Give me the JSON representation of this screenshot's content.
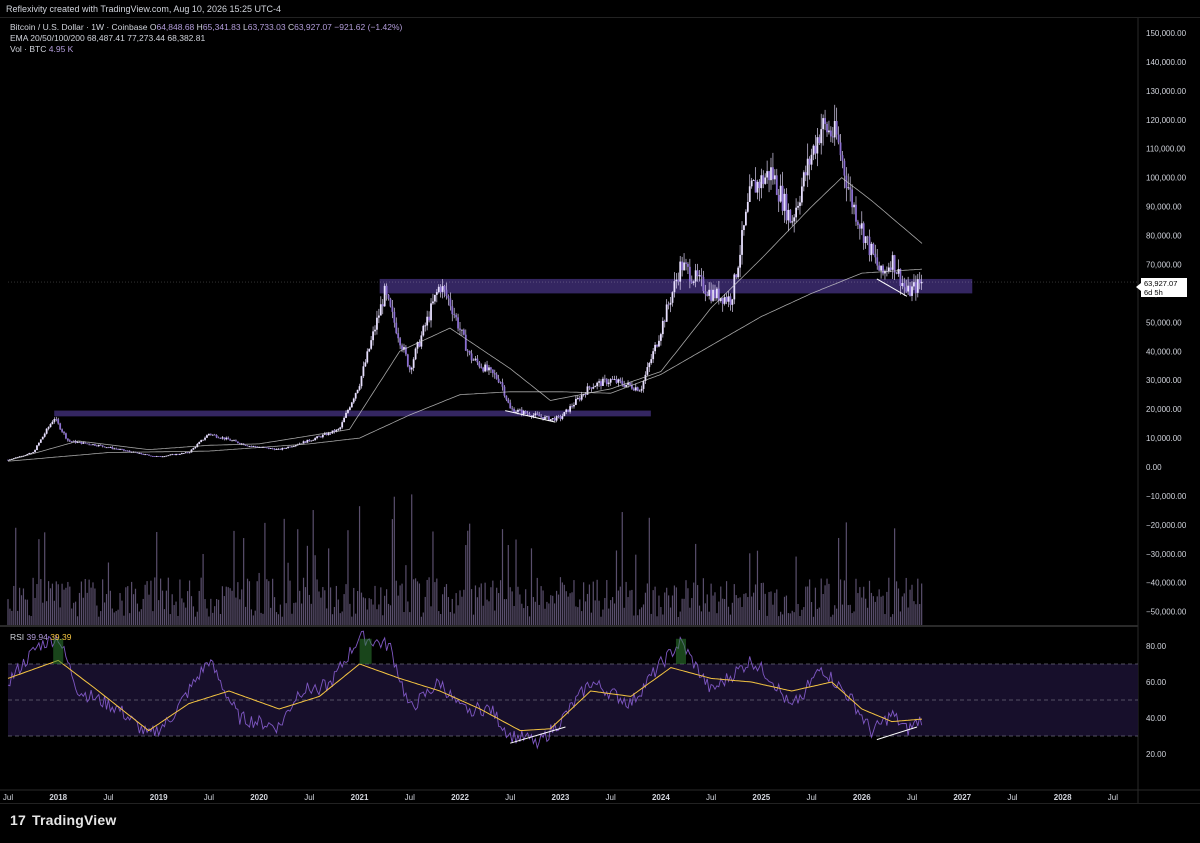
{
  "header": {
    "text": "Reflexivity created with TradingView.com, Aug 10, 2026 15:25 UTC-4"
  },
  "legend": {
    "symbol": "Bitcoin / U.S. Dollar · 1W · Coinbase",
    "open_label": "O",
    "open": "64,848.68",
    "high_label": "H",
    "high": "65,341.83",
    "low_label": "L",
    "low": "63,733.03",
    "close_label": "C",
    "close": "63,927.07",
    "change": "−921.62 (−1.42%)",
    "ema_label": "EMA 20/50/100/200",
    "ema_values": "68,487.41  77,273.44  68,382.81",
    "vol_label": "Vol · BTC",
    "vol_value": "4.95 K",
    "rsi_label": "RSI",
    "rsi_value": "39.94",
    "rsi_ma_value": "39.39"
  },
  "price_tag": {
    "price": "63,927.07",
    "countdown": "6d 5h"
  },
  "branding": {
    "name": "TradingView",
    "mark": "17"
  },
  "colors": {
    "background": "#000000",
    "candle": "#b39ddb",
    "volume": "#6a5d80",
    "zone": "#3a2a6b",
    "rsi": "#7e57c2",
    "rsi_ma": "#f5c542",
    "rsi_band": "#1a1130",
    "ema": "#cfcfcf"
  },
  "chart_data": [
    {
      "type": "candlestick",
      "title": "Bitcoin / U.S. Dollar · 1W · Coinbase",
      "x_tick_labels": [
        "Jul",
        "2018",
        "Jul",
        "2019",
        "Jul",
        "2020",
        "Jul",
        "2021",
        "Jul",
        "2022",
        "Jul",
        "2023",
        "Jul",
        "2024",
        "Jul",
        "2025",
        "Jul",
        "2026",
        "Jul",
        "2027",
        "Jul",
        "2028",
        "Jul"
      ],
      "y_tick_labels": [
        "150,000.00",
        "140,000.00",
        "130,000.00",
        "120,000.00",
        "110,000.00",
        "100,000.00",
        "90,000.00",
        "80,000.00",
        "70,000.00",
        "60,000.00",
        "50,000.00",
        "40,000.00",
        "30,000.00",
        "20,000.00",
        "10,000.00",
        "0.00",
        "−10,000.00",
        "−20,000.00",
        "−30,000.00",
        "−40,000.00",
        "−50,000.00"
      ],
      "ylim": [
        -50000,
        150000
      ],
      "last_price": 63927.07,
      "weekly_close_approx": [
        [
          2017.5,
          2500
        ],
        [
          2017.75,
          5000
        ],
        [
          2017.96,
          17000
        ],
        [
          2018.1,
          9000
        ],
        [
          2018.4,
          7500
        ],
        [
          2018.9,
          4000
        ],
        [
          2019.0,
          3600
        ],
        [
          2019.3,
          5000
        ],
        [
          2019.5,
          11500
        ],
        [
          2019.9,
          7300
        ],
        [
          2020.2,
          6000
        ],
        [
          2020.5,
          9200
        ],
        [
          2020.8,
          13000
        ],
        [
          2021.0,
          29000
        ],
        [
          2021.25,
          60000
        ],
        [
          2021.5,
          34000
        ],
        [
          2021.8,
          63000
        ],
        [
          2021.9,
          57000
        ],
        [
          2022.1,
          38000
        ],
        [
          2022.4,
          30000
        ],
        [
          2022.5,
          20000
        ],
        [
          2022.9,
          16500
        ],
        [
          2023.0,
          17000
        ],
        [
          2023.3,
          28000
        ],
        [
          2023.5,
          30000
        ],
        [
          2023.8,
          27000
        ],
        [
          2023.95,
          42000
        ],
        [
          2024.2,
          70000
        ],
        [
          2024.5,
          60000
        ],
        [
          2024.7,
          58000
        ],
        [
          2024.9,
          96000
        ],
        [
          2025.1,
          102000
        ],
        [
          2025.3,
          85000
        ],
        [
          2025.5,
          108000
        ],
        [
          2025.6,
          118000
        ],
        [
          2025.75,
          114000
        ],
        [
          2025.9,
          92000
        ],
        [
          2026.05,
          78000
        ],
        [
          2026.2,
          66000
        ],
        [
          2026.3,
          72000
        ],
        [
          2026.45,
          60000
        ],
        [
          2026.6,
          63927
        ]
      ],
      "ema_200_approx": [
        [
          2017.5,
          2000
        ],
        [
          2018.5,
          5000
        ],
        [
          2019.5,
          5500
        ],
        [
          2020.5,
          8000
        ],
        [
          2021.0,
          10000
        ],
        [
          2021.5,
          18000
        ],
        [
          2022.0,
          25000
        ],
        [
          2022.5,
          26000
        ],
        [
          2023.0,
          26000
        ],
        [
          2023.5,
          25500
        ],
        [
          2024.0,
          32000
        ],
        [
          2024.5,
          42000
        ],
        [
          2025.0,
          52000
        ],
        [
          2025.5,
          60000
        ],
        [
          2026.0,
          67000
        ],
        [
          2026.6,
          68382.81
        ]
      ],
      "ema_50_approx": [
        [
          2017.5,
          2200
        ],
        [
          2018.2,
          9000
        ],
        [
          2018.9,
          6000
        ],
        [
          2019.5,
          7500
        ],
        [
          2020.0,
          8000
        ],
        [
          2020.9,
          13000
        ],
        [
          2021.4,
          40000
        ],
        [
          2021.9,
          48000
        ],
        [
          2022.5,
          34000
        ],
        [
          2022.9,
          23000
        ],
        [
          2023.5,
          27000
        ],
        [
          2024.0,
          33000
        ],
        [
          2024.5,
          55000
        ],
        [
          2025.0,
          72000
        ],
        [
          2025.5,
          90000
        ],
        [
          2025.8,
          100000
        ],
        [
          2026.1,
          92000
        ],
        [
          2026.6,
          77273.44
        ]
      ],
      "support_zones": [
        {
          "from": 2017.96,
          "to": 2023.9,
          "low": 17500,
          "high": 19500
        },
        {
          "from": 2021.2,
          "to": 2027.1,
          "low": 60000,
          "high": 65000
        }
      ],
      "divergence_lines": [
        {
          "x1": 2022.45,
          "y1": 19500,
          "x2": 2022.95,
          "y2": 15500
        },
        {
          "x1": 2026.15,
          "y1": 65000,
          "x2": 2026.45,
          "y2": 59000
        }
      ]
    },
    {
      "type": "bar",
      "title": "Vol · BTC",
      "latest": "4.95 K"
    },
    {
      "type": "line",
      "title": "RSI",
      "y_tick_labels": [
        "80.00",
        "60.00",
        "40.00",
        "20.00"
      ],
      "ylim": [
        10,
        90
      ],
      "bands": [
        70,
        50,
        30
      ],
      "rsi_approx": [
        [
          2017.5,
          60
        ],
        [
          2017.8,
          80
        ],
        [
          2018.0,
          85
        ],
        [
          2018.2,
          55
        ],
        [
          2018.6,
          45
        ],
        [
          2018.9,
          30
        ],
        [
          2019.1,
          38
        ],
        [
          2019.5,
          72
        ],
        [
          2019.8,
          40
        ],
        [
          2020.2,
          35
        ],
        [
          2020.4,
          55
        ],
        [
          2020.7,
          58
        ],
        [
          2021.0,
          85
        ],
        [
          2021.3,
          80
        ],
        [
          2021.5,
          45
        ],
        [
          2021.8,
          60
        ],
        [
          2022.0,
          45
        ],
        [
          2022.3,
          45
        ],
        [
          2022.5,
          30
        ],
        [
          2022.8,
          27
        ],
        [
          2023.0,
          38
        ],
        [
          2023.3,
          60
        ],
        [
          2023.7,
          48
        ],
        [
          2024.0,
          70
        ],
        [
          2024.2,
          82
        ],
        [
          2024.5,
          55
        ],
        [
          2024.9,
          72
        ],
        [
          2025.1,
          62
        ],
        [
          2025.3,
          45
        ],
        [
          2025.6,
          68
        ],
        [
          2025.9,
          50
        ],
        [
          2026.1,
          32
        ],
        [
          2026.3,
          42
        ],
        [
          2026.45,
          33
        ],
        [
          2026.6,
          39.94
        ]
      ],
      "rsi_ma_approx": [
        [
          2017.5,
          62
        ],
        [
          2018.0,
          72
        ],
        [
          2018.4,
          55
        ],
        [
          2018.9,
          33
        ],
        [
          2019.3,
          48
        ],
        [
          2019.7,
          55
        ],
        [
          2020.2,
          45
        ],
        [
          2020.6,
          52
        ],
        [
          2021.0,
          70
        ],
        [
          2021.4,
          62
        ],
        [
          2021.8,
          55
        ],
        [
          2022.2,
          45
        ],
        [
          2022.6,
          33
        ],
        [
          2022.9,
          34
        ],
        [
          2023.3,
          55
        ],
        [
          2023.7,
          52
        ],
        [
          2024.1,
          68
        ],
        [
          2024.5,
          62
        ],
        [
          2024.9,
          60
        ],
        [
          2025.3,
          55
        ],
        [
          2025.7,
          60
        ],
        [
          2026.0,
          45
        ],
        [
          2026.3,
          38
        ],
        [
          2026.6,
          39.39
        ]
      ],
      "divergence_lines": [
        {
          "x1": 2022.5,
          "y1": 26,
          "x2": 2023.05,
          "y2": 35
        },
        {
          "x1": 2026.15,
          "y1": 28,
          "x2": 2026.55,
          "y2": 35
        }
      ]
    }
  ]
}
